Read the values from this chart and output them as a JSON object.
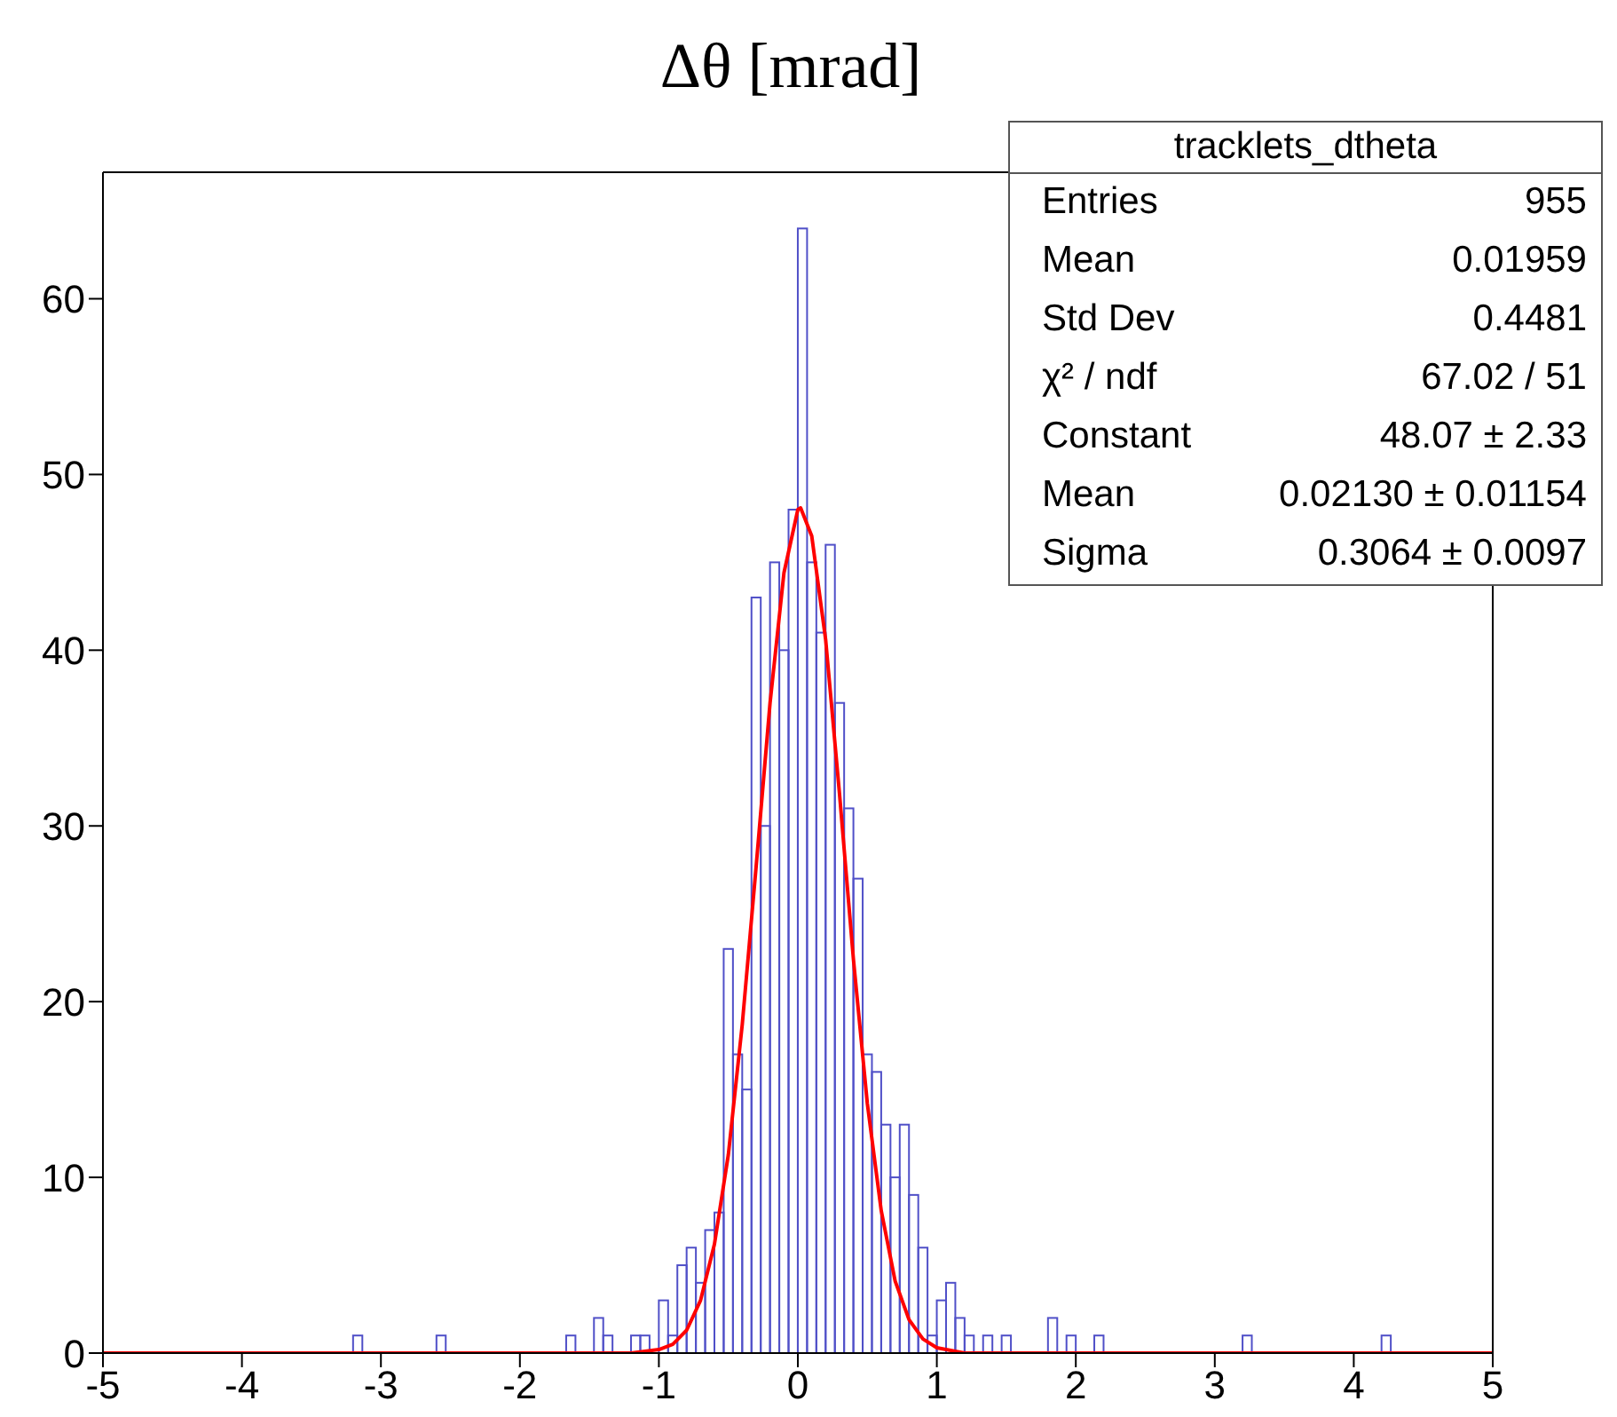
{
  "chart_data": {
    "type": "histogram",
    "title": "Δθ [mrad]",
    "bins": [
      -5,
      -4.9333,
      -4.8667,
      -4.8,
      -4.7333,
      -4.6667,
      -4.6,
      -4.5333,
      -4.4667,
      -4.4,
      -4.3333,
      -4.2667,
      -4.2,
      -4.1333,
      -4.0667,
      -4,
      -3.9333,
      -3.8667,
      -3.8,
      -3.7333,
      -3.6667,
      -3.6,
      -3.5333,
      -3.4667,
      -3.4,
      -3.3333,
      -3.2667,
      -3.2,
      -3.1333,
      -3.0667,
      -3,
      -2.9333,
      -2.8667,
      -2.8,
      -2.7333,
      -2.6667,
      -2.6,
      -2.5333,
      -2.4667,
      -2.4,
      -2.3333,
      -2.2667,
      -2.2,
      -2.1333,
      -2.0667,
      -2,
      -1.9333,
      -1.8667,
      -1.8,
      -1.7333,
      -1.6667,
      -1.6,
      -1.5333,
      -1.4667,
      -1.4,
      -1.3333,
      -1.2667,
      -1.2,
      -1.1333,
      -1.0667,
      -1,
      -0.9333,
      -0.8667,
      -0.8,
      -0.7333,
      -0.6667,
      -0.6,
      -0.5333,
      -0.4667,
      -0.4,
      -0.3333,
      -0.2667,
      -0.2,
      -0.1333,
      -0.0667,
      0,
      0.0667,
      0.1333,
      0.2,
      0.2667,
      0.3333,
      0.4,
      0.4667,
      0.5333,
      0.6,
      0.6667,
      0.7333,
      0.8,
      0.8667,
      0.9333,
      1,
      1.0667,
      1.1333,
      1.2,
      1.2667,
      1.3333,
      1.4,
      1.4667,
      1.5333,
      1.6,
      1.6667,
      1.7333,
      1.8,
      1.8667,
      1.9333,
      2,
      2.0667,
      2.1333,
      2.2,
      2.2667,
      2.3333,
      2.4,
      2.4667,
      2.5333,
      2.6,
      2.6667,
      2.7333,
      2.8,
      2.8667,
      2.9333,
      3,
      3.0667,
      3.1333,
      3.2,
      3.2667,
      3.3333,
      3.4,
      3.4667,
      3.5333,
      3.6,
      3.6667,
      3.7333,
      3.8,
      3.8667,
      3.9333,
      4,
      4.0667,
      4.1333,
      4.2,
      4.2667,
      4.3333,
      4.4,
      4.4667,
      4.5333,
      4.6,
      4.6667,
      4.7333,
      4.8,
      4.8667,
      4.9333,
      5
    ],
    "series": [
      {
        "color": "#5050c8",
        "values": [
          0,
          0,
          0,
          0,
          0,
          0,
          0,
          0,
          0,
          0,
          0,
          0,
          0,
          0,
          0,
          0,
          0,
          0,
          0,
          0,
          0,
          0,
          0,
          0,
          0,
          0,
          0,
          1,
          0,
          0,
          0,
          0,
          0,
          0,
          0,
          0,
          1,
          0,
          0,
          0,
          0,
          0,
          0,
          0,
          0,
          0,
          0,
          0,
          0,
          0,
          1,
          0,
          0,
          2,
          1,
          0,
          0,
          1,
          1,
          0,
          3,
          1,
          5,
          6,
          4,
          7,
          8,
          23,
          17,
          15,
          43,
          30,
          45,
          40,
          48,
          64,
          45,
          41,
          46,
          37,
          31,
          27,
          17,
          16,
          13,
          10,
          13,
          9,
          6,
          1,
          3,
          4,
          2,
          1,
          0,
          1,
          0,
          1,
          0,
          0,
          0,
          0,
          2,
          0,
          1,
          0,
          0,
          1,
          0,
          0,
          0,
          0,
          0,
          0,
          0,
          0,
          0,
          0,
          0,
          0,
          0,
          0,
          0,
          1,
          0,
          0,
          0,
          0,
          0,
          0,
          0,
          0,
          0,
          0,
          0,
          0,
          0,
          0,
          1,
          0,
          0,
          0,
          0,
          0,
          0,
          0,
          0,
          0,
          0,
          0
        ]
      },
      {
        "type": "line",
        "color": "#ff0000",
        "x": [
          -5,
          -1.2,
          -1,
          -0.9,
          -0.8,
          -0.7,
          -0.6,
          -0.5,
          -0.4,
          -0.3,
          -0.2,
          -0.1,
          0,
          0.02,
          0.1,
          0.2,
          0.3,
          0.4,
          0.5,
          0.6,
          0.7,
          0.8,
          0.9,
          1,
          1.2,
          5
        ],
        "values": [
          0,
          0,
          0.2,
          0.5,
          1.3,
          3,
          6.2,
          11.3,
          18.7,
          27.7,
          37,
          44.4,
          48,
          48.1,
          46.5,
          40.6,
          31.8,
          22.4,
          14.2,
          8.1,
          4.1,
          1.9,
          0.8,
          0.3,
          0,
          0
        ]
      }
    ],
    "xlim": [
      -5,
      5
    ],
    "xticks": [
      -5,
      -4,
      -3,
      -2,
      -1,
      0,
      1,
      2,
      3,
      4,
      5
    ],
    "ylim": [
      0,
      67.2
    ],
    "yticks": [
      0,
      10,
      20,
      30,
      40,
      50,
      60
    ],
    "grid": false,
    "legend": false,
    "annotations": [
      "tracklets_dtheta",
      "Entries",
      "955",
      "Mean",
      "0.01959",
      "Std Dev",
      "0.4481",
      "χ² / ndf",
      "67.02 / 51",
      "Constant",
      "48.07 ± 2.33",
      "Mean",
      "0.02130 ± 0.01154",
      "Sigma",
      "0.3064 ± 0.0097"
    ]
  }
}
